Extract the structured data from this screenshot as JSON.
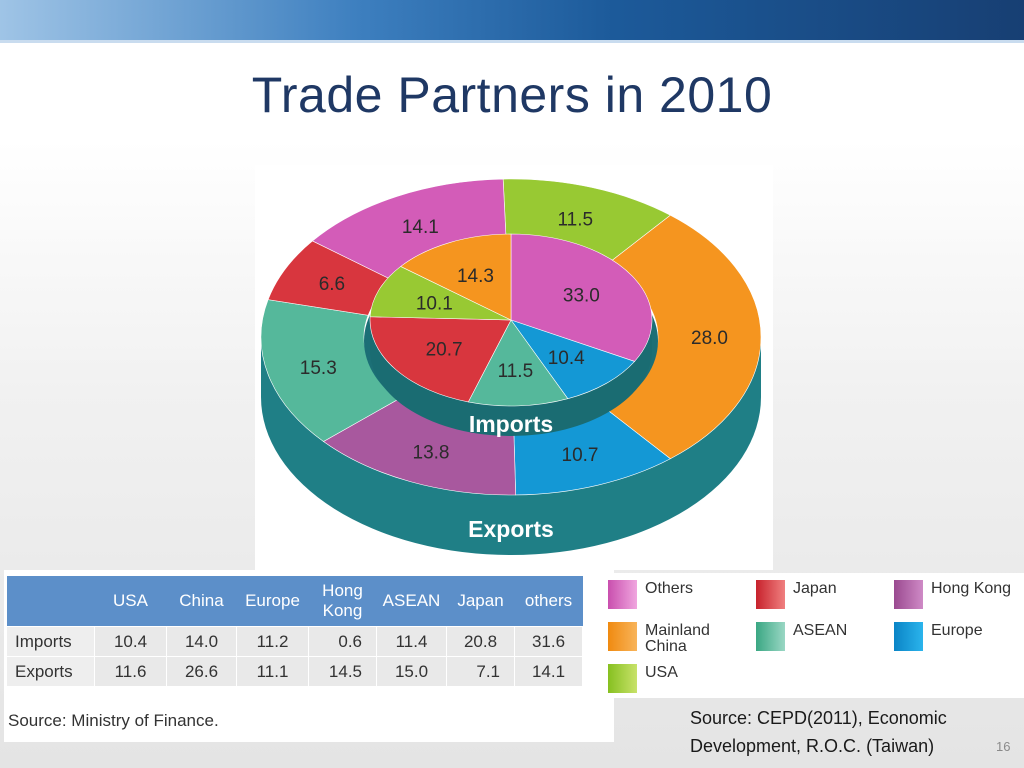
{
  "slide": {
    "title": "Trade Partners in 2010",
    "source_note_line1": "Source: CEPD(2011), Economic",
    "source_note_line2": "Development, R.O.C. (Taiwan)",
    "page_number": "16"
  },
  "chart_data": [
    {
      "type": "pie",
      "title": "",
      "inner_label": "Imports",
      "outer_label": "Exports",
      "series": [
        {
          "name": "Imports",
          "categories": [
            "Others",
            "Europe",
            "ASEAN",
            "Japan",
            "USA",
            "Mainland China"
          ],
          "values": [
            33.0,
            10.4,
            11.5,
            20.7,
            10.1,
            14.3
          ]
        },
        {
          "name": "Exports",
          "categories": [
            "USA",
            "Mainland China",
            "Europe",
            "Hong Kong",
            "ASEAN",
            "Japan",
            "Others"
          ],
          "values": [
            11.5,
            28.0,
            10.7,
            13.8,
            15.3,
            6.6,
            14.1
          ]
        }
      ],
      "legend_position": "bottom-right",
      "colors": {
        "Others": "#d35cb8",
        "Japan": "#d8363e",
        "Hong Kong": "#a8589e",
        "Mainland China": "#f5951f",
        "ASEAN": "#55b89b",
        "Europe": "#1498d5",
        "USA": "#98c933",
        "side": "#1f7f86"
      }
    },
    {
      "type": "table",
      "columns": [
        "USA",
        "China",
        "Europe",
        "Hong Kong",
        "ASEAN",
        "Japan",
        "others"
      ],
      "rows": [
        {
          "label": "Imports",
          "values": [
            "10.4",
            "14.0",
            "11.2",
            "0.6",
            "11.4",
            "20.8",
            "31.6"
          ]
        },
        {
          "label": "Exports",
          "values": [
            "11.6",
            "26.6",
            "11.1",
            "14.5",
            "15.0",
            "7.1",
            "14.1"
          ]
        }
      ],
      "source": "Source: Ministry of Finance."
    }
  ],
  "legend": [
    {
      "label": "Others",
      "color": "#d35cb8"
    },
    {
      "label": "Japan",
      "color": "#d8363e"
    },
    {
      "label": "Hong Kong",
      "color": "#a8589e"
    },
    {
      "label": "Mainland China",
      "color": "#f5951f"
    },
    {
      "label": "ASEAN",
      "color": "#55b89b"
    },
    {
      "label": "Europe",
      "color": "#1498d5"
    },
    {
      "label": "USA",
      "color": "#98c933"
    }
  ]
}
